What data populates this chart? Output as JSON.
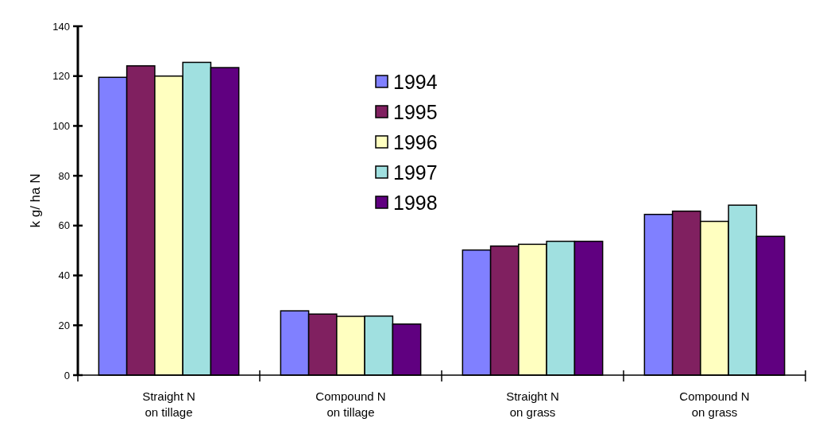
{
  "chart_data": {
    "type": "bar",
    "ylabel": "k g/ ha N",
    "categories": [
      "Straight N\non tillage",
      "Compound N\non tillage",
      "Straight N\non grass",
      "Compound N\non grass"
    ],
    "series": [
      {
        "name": "1994",
        "color": "#8080ff",
        "values": [
          119.5,
          25.8,
          50.2,
          64.5
        ]
      },
      {
        "name": "1995",
        "color": "#802060",
        "values": [
          124.1,
          24.5,
          51.8,
          65.8
        ]
      },
      {
        "name": "1996",
        "color": "#ffffc0",
        "values": [
          120,
          23.6,
          52.5,
          61.7
        ]
      },
      {
        "name": "1997",
        "color": "#a0e0e0",
        "values": [
          125.5,
          23.7,
          53.7,
          68.2
        ]
      },
      {
        "name": "1998",
        "color": "#600080",
        "values": [
          123.4,
          20.5,
          53.7,
          55.7
        ]
      }
    ],
    "ylim": [
      0,
      140
    ],
    "yticks": [
      0,
      20,
      40,
      60,
      80,
      100,
      120,
      140
    ],
    "legend": "top",
    "grid": false
  }
}
